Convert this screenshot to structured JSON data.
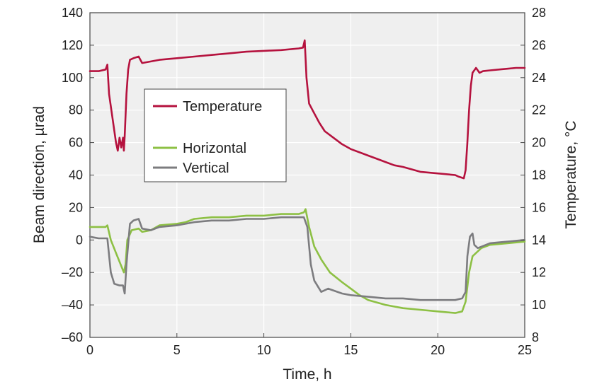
{
  "chart_data": {
    "type": "line",
    "xlabel": "Time, h",
    "ylabel_left": "Beam direction, µrad",
    "ylabel_right": "Temperature, °C",
    "xlim": [
      0,
      25
    ],
    "ylim_left": [
      -60,
      140
    ],
    "ylim_right": [
      8,
      28
    ],
    "x_ticks": [
      0,
      5,
      10,
      15,
      20,
      25
    ],
    "y_left_ticks": [
      -60,
      -40,
      -20,
      0,
      20,
      40,
      60,
      80,
      100,
      120,
      140
    ],
    "y_right_ticks": [
      8,
      10,
      12,
      14,
      16,
      18,
      20,
      22,
      24,
      26,
      28
    ],
    "grid": true,
    "legend_position": "center-left",
    "series": [
      {
        "name": "Temperature",
        "axis": "right",
        "color": "#b5123e",
        "points": [
          [
            0,
            24.4
          ],
          [
            0.5,
            24.4
          ],
          [
            0.9,
            24.5
          ],
          [
            1.0,
            24.8
          ],
          [
            1.1,
            23.0
          ],
          [
            1.3,
            21.5
          ],
          [
            1.5,
            20.0
          ],
          [
            1.6,
            19.5
          ],
          [
            1.7,
            20.3
          ],
          [
            1.8,
            19.7
          ],
          [
            1.9,
            20.3
          ],
          [
            1.95,
            19.5
          ],
          [
            2.0,
            20.4
          ],
          [
            2.1,
            23.0
          ],
          [
            2.2,
            24.5
          ],
          [
            2.3,
            25.1
          ],
          [
            2.5,
            25.2
          ],
          [
            2.8,
            25.3
          ],
          [
            3.0,
            24.9
          ],
          [
            3.5,
            25.0
          ],
          [
            4.0,
            25.1
          ],
          [
            5.0,
            25.2
          ],
          [
            6.0,
            25.3
          ],
          [
            7.0,
            25.4
          ],
          [
            8.0,
            25.5
          ],
          [
            9.0,
            25.6
          ],
          [
            10.0,
            25.65
          ],
          [
            11.0,
            25.7
          ],
          [
            12.0,
            25.8
          ],
          [
            12.25,
            25.85
          ],
          [
            12.35,
            26.3
          ],
          [
            12.45,
            24.0
          ],
          [
            12.6,
            22.4
          ],
          [
            12.9,
            21.8
          ],
          [
            13.2,
            21.2
          ],
          [
            13.5,
            20.7
          ],
          [
            14.0,
            20.3
          ],
          [
            14.5,
            19.9
          ],
          [
            15.0,
            19.6
          ],
          [
            15.5,
            19.4
          ],
          [
            16.0,
            19.2
          ],
          [
            16.5,
            19.0
          ],
          [
            17.0,
            18.8
          ],
          [
            17.5,
            18.6
          ],
          [
            18.0,
            18.5
          ],
          [
            19.0,
            18.2
          ],
          [
            20.0,
            18.1
          ],
          [
            21.0,
            18.0
          ],
          [
            21.2,
            17.9
          ],
          [
            21.5,
            17.8
          ],
          [
            21.6,
            18.3
          ],
          [
            21.7,
            20.0
          ],
          [
            21.8,
            22.0
          ],
          [
            21.9,
            23.5
          ],
          [
            22.0,
            24.3
          ],
          [
            22.2,
            24.6
          ],
          [
            22.4,
            24.3
          ],
          [
            22.6,
            24.4
          ],
          [
            23.0,
            24.45
          ],
          [
            23.5,
            24.5
          ],
          [
            24.0,
            24.55
          ],
          [
            24.5,
            24.6
          ],
          [
            25.0,
            24.6
          ]
        ]
      },
      {
        "name": "Horizontal",
        "axis": "left",
        "color": "#8dc044",
        "points": [
          [
            0,
            8
          ],
          [
            0.5,
            8
          ],
          [
            0.9,
            8
          ],
          [
            1.0,
            9
          ],
          [
            1.2,
            0
          ],
          [
            1.5,
            -8
          ],
          [
            1.8,
            -16
          ],
          [
            1.95,
            -20
          ],
          [
            2.05,
            -15
          ],
          [
            2.15,
            0
          ],
          [
            2.4,
            6
          ],
          [
            2.8,
            7
          ],
          [
            3.0,
            5
          ],
          [
            3.5,
            6
          ],
          [
            4.0,
            9
          ],
          [
            5.0,
            10
          ],
          [
            5.5,
            11
          ],
          [
            6.0,
            13
          ],
          [
            7.0,
            14
          ],
          [
            8.0,
            14
          ],
          [
            9.0,
            15
          ],
          [
            10.0,
            15
          ],
          [
            11.0,
            16
          ],
          [
            12.0,
            16
          ],
          [
            12.3,
            17
          ],
          [
            12.4,
            19
          ],
          [
            12.6,
            8
          ],
          [
            12.9,
            -4
          ],
          [
            13.3,
            -12
          ],
          [
            13.8,
            -20
          ],
          [
            14.5,
            -26
          ],
          [
            15.0,
            -30
          ],
          [
            15.5,
            -34
          ],
          [
            16.0,
            -37
          ],
          [
            17.0,
            -40
          ],
          [
            18.0,
            -42
          ],
          [
            19.0,
            -43
          ],
          [
            20.0,
            -44
          ],
          [
            21.0,
            -45
          ],
          [
            21.4,
            -44
          ],
          [
            21.6,
            -38
          ],
          [
            21.8,
            -20
          ],
          [
            22.0,
            -10
          ],
          [
            22.5,
            -5
          ],
          [
            23.0,
            -3
          ],
          [
            24.0,
            -2
          ],
          [
            25.0,
            -1
          ]
        ]
      },
      {
        "name": "Vertical",
        "axis": "left",
        "color": "#7c7c7f",
        "points": [
          [
            0,
            2
          ],
          [
            0.5,
            1
          ],
          [
            0.9,
            1
          ],
          [
            1.0,
            1
          ],
          [
            1.2,
            -20
          ],
          [
            1.4,
            -27
          ],
          [
            1.7,
            -28
          ],
          [
            1.9,
            -28
          ],
          [
            2.0,
            -33
          ],
          [
            2.1,
            -15
          ],
          [
            2.3,
            10
          ],
          [
            2.5,
            12
          ],
          [
            2.8,
            13
          ],
          [
            3.0,
            7
          ],
          [
            3.5,
            6
          ],
          [
            4.0,
            8
          ],
          [
            5.0,
            9
          ],
          [
            6.0,
            11
          ],
          [
            7.0,
            12
          ],
          [
            8.0,
            12
          ],
          [
            9.0,
            13
          ],
          [
            10.0,
            13
          ],
          [
            11.0,
            14
          ],
          [
            12.0,
            14
          ],
          [
            12.3,
            14
          ],
          [
            12.5,
            8
          ],
          [
            12.7,
            -15
          ],
          [
            12.9,
            -25
          ],
          [
            13.3,
            -32
          ],
          [
            13.7,
            -30
          ],
          [
            14.5,
            -33
          ],
          [
            15.0,
            -34
          ],
          [
            16.0,
            -35
          ],
          [
            17.0,
            -36
          ],
          [
            18.0,
            -36
          ],
          [
            19.0,
            -37
          ],
          [
            20.0,
            -37
          ],
          [
            21.0,
            -37
          ],
          [
            21.4,
            -36
          ],
          [
            21.6,
            -32
          ],
          [
            21.7,
            -10
          ],
          [
            21.85,
            2
          ],
          [
            22.0,
            4
          ],
          [
            22.1,
            -3
          ],
          [
            22.3,
            -5
          ],
          [
            23.0,
            -2
          ],
          [
            24.0,
            -1
          ],
          [
            25.0,
            0
          ]
        ]
      }
    ]
  }
}
